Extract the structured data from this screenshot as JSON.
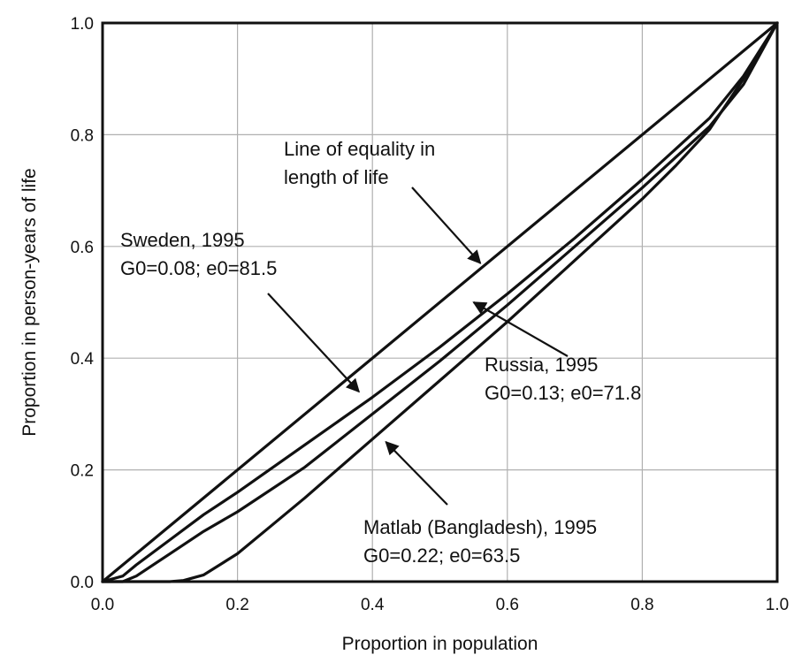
{
  "chart_data": {
    "type": "line",
    "title": "",
    "xlabel": "Proportion in population",
    "ylabel": "Proportion in person-years of life",
    "xlim": [
      0.0,
      1.0
    ],
    "ylim": [
      0.0,
      1.0
    ],
    "xticks": [
      "0.0",
      "0.2",
      "0.4",
      "0.6",
      "0.8",
      "1.0"
    ],
    "yticks": [
      "0.0",
      "0.2",
      "0.4",
      "0.6",
      "0.8",
      "1.0"
    ],
    "grid": true,
    "legend": "none",
    "line_color": "#111111",
    "grid_color": "#b0b0b0",
    "series": [
      {
        "name": "Line of equality in length of life",
        "x": [
          0.0,
          1.0
        ],
        "y": [
          0.0,
          1.0
        ]
      },
      {
        "name": "Sweden, 1995",
        "x": [
          0.0,
          0.03,
          0.05,
          0.1,
          0.15,
          0.2,
          0.3,
          0.4,
          0.5,
          0.6,
          0.7,
          0.8,
          0.9,
          0.95,
          1.0
        ],
        "y": [
          0.0,
          0.01,
          0.03,
          0.075,
          0.12,
          0.16,
          0.245,
          0.33,
          0.42,
          0.515,
          0.615,
          0.72,
          0.83,
          0.905,
          1.0
        ]
      },
      {
        "name": "Russia, 1995",
        "x": [
          0.0,
          0.03,
          0.05,
          0.1,
          0.15,
          0.2,
          0.3,
          0.4,
          0.5,
          0.6,
          0.7,
          0.8,
          0.9,
          0.95,
          1.0
        ],
        "y": [
          0.0,
          0.0,
          0.01,
          0.05,
          0.09,
          0.125,
          0.205,
          0.3,
          0.395,
          0.495,
          0.6,
          0.705,
          0.815,
          0.89,
          1.0
        ]
      },
      {
        "name": "Matlab (Bangladesh), 1995",
        "x": [
          0.0,
          0.05,
          0.1,
          0.12,
          0.15,
          0.2,
          0.25,
          0.3,
          0.4,
          0.5,
          0.6,
          0.7,
          0.8,
          0.85,
          0.9,
          0.95,
          1.0
        ],
        "y": [
          0.0,
          0.0,
          0.0,
          0.002,
          0.012,
          0.05,
          0.1,
          0.15,
          0.255,
          0.36,
          0.465,
          0.575,
          0.685,
          0.745,
          0.81,
          0.9,
          1.0
        ]
      }
    ],
    "annotations": [
      {
        "id": "equality",
        "lines": [
          "Line of equality in",
          "length of life"
        ],
        "target": [
          0.56,
          0.57
        ]
      },
      {
        "id": "sweden",
        "lines": [
          "Sweden, 1995",
          "G0=0.08; e0=81.5"
        ],
        "target": [
          0.38,
          0.34
        ]
      },
      {
        "id": "russia",
        "lines": [
          "Russia, 1995",
          "G0=0.13; e0=71.8"
        ],
        "target": [
          0.55,
          0.5
        ]
      },
      {
        "id": "matlab",
        "lines": [
          "Matlab (Bangladesh), 1995",
          "G0=0.22; e0=63.5"
        ],
        "target": [
          0.42,
          0.25
        ]
      }
    ]
  }
}
